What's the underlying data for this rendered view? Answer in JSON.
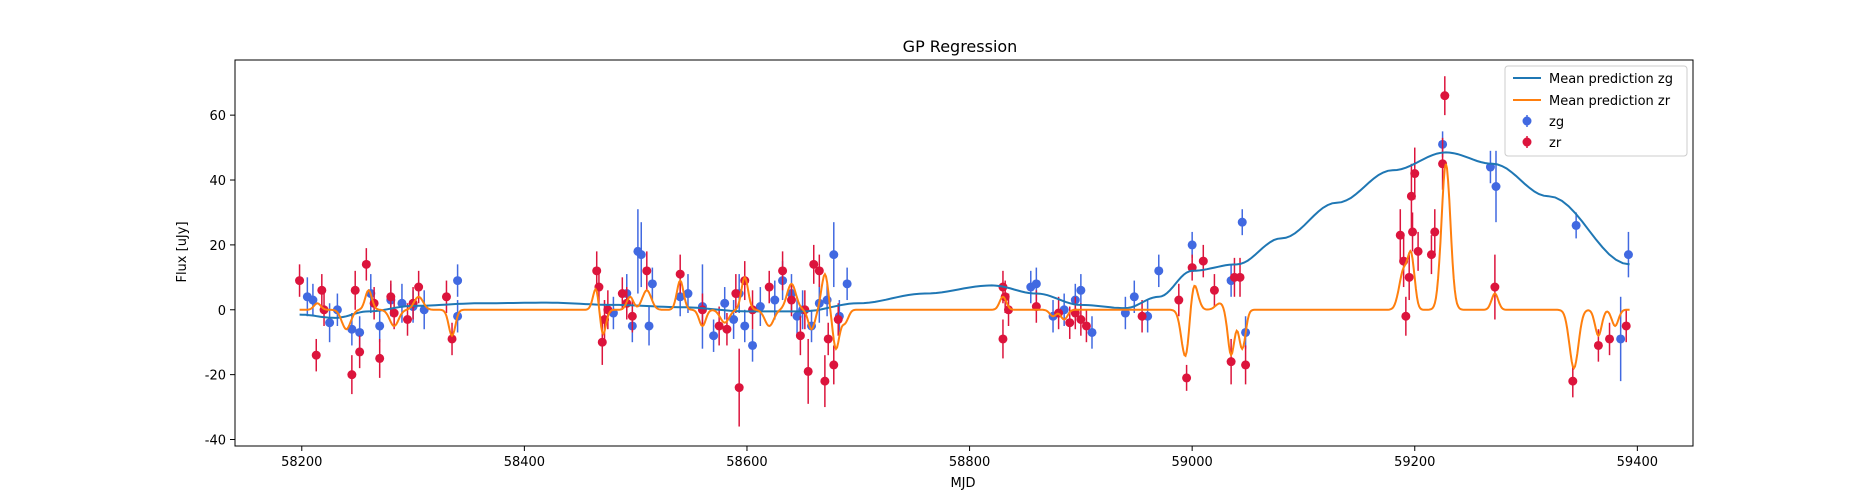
{
  "chart_data": {
    "type": "scatter",
    "title": "GP Regression",
    "xlabel": "MJD",
    "ylabel": "Flux [uJy]",
    "xlim": [
      58140,
      59450
    ],
    "ylim": [
      -42,
      77
    ],
    "xticks": [
      58200,
      58400,
      58600,
      58800,
      59000,
      59200,
      59400
    ],
    "yticks": [
      -40,
      -20,
      0,
      20,
      40,
      60
    ],
    "grid": false,
    "legend_position": "top-right",
    "legend": {
      "line_zg": "Mean prediction zg",
      "line_zr": "Mean prediction zr",
      "points_zg": "zg",
      "points_zr": "zr"
    },
    "colors": {
      "line_zg": "#1f77b4",
      "line_zr": "#ff7f0e",
      "points_zg": "#4169e1",
      "points_zr": "#dc143c"
    },
    "line_zg": {
      "x": [
        58198,
        58230,
        58260,
        58300,
        58360,
        58420,
        58480,
        58540,
        58600,
        58650,
        58700,
        58760,
        58820,
        58860,
        58900,
        58940,
        58970,
        59000,
        59040,
        59080,
        59130,
        59180,
        59228,
        59270,
        59320,
        59393
      ],
      "y": [
        -1.5,
        -2.5,
        -0.5,
        1.2,
        2,
        2.2,
        1.5,
        0.8,
        -0.5,
        -0.5,
        2,
        5,
        7.5,
        5,
        1.5,
        0.5,
        4,
        12,
        14,
        22,
        33,
        43,
        48.5,
        45,
        35,
        14
      ]
    },
    "line_zr_baseline": 0,
    "line_zr_peaks": [
      [
        58214,
        2,
        3
      ],
      [
        58240,
        -6,
        4
      ],
      [
        58260,
        6,
        3
      ],
      [
        58283,
        -5,
        4
      ],
      [
        58305,
        4,
        4
      ],
      [
        58335,
        -8,
        3
      ],
      [
        58465,
        8,
        3
      ],
      [
        58470,
        -9,
        3
      ],
      [
        58495,
        4,
        3
      ],
      [
        58510,
        6,
        4
      ],
      [
        58540,
        9,
        3
      ],
      [
        58560,
        -5,
        3
      ],
      [
        58580,
        -4,
        4
      ],
      [
        58598,
        10,
        3
      ],
      [
        58620,
        -5,
        4
      ],
      [
        58640,
        8,
        4
      ],
      [
        58658,
        -6,
        3
      ],
      [
        58670,
        11,
        3
      ],
      [
        58680,
        -12,
        3
      ],
      [
        58688,
        -4,
        3
      ],
      [
        58830,
        4,
        3
      ],
      [
        58875,
        -2,
        3
      ],
      [
        58885,
        -3,
        3
      ],
      [
        58995,
        -19,
        4
      ],
      [
        59000,
        13,
        4
      ],
      [
        59025,
        2,
        4
      ],
      [
        59035,
        -14,
        3
      ],
      [
        59045,
        -12,
        3
      ],
      [
        59190,
        12,
        4
      ],
      [
        59197,
        15,
        3
      ],
      [
        59228,
        45,
        4
      ],
      [
        59272,
        5,
        3
      ],
      [
        59343,
        -18,
        4
      ],
      [
        59365,
        -8,
        3
      ],
      [
        59380,
        -5,
        3
      ]
    ],
    "points_zg": [
      [
        58205,
        4,
        6
      ],
      [
        58210,
        3,
        5
      ],
      [
        58225,
        -4,
        6
      ],
      [
        58232,
        0,
        5
      ],
      [
        58245,
        -6,
        5
      ],
      [
        58252,
        -7,
        5
      ],
      [
        58262,
        5,
        6
      ],
      [
        58270,
        -5,
        5
      ],
      [
        58280,
        3,
        5
      ],
      [
        58290,
        2,
        6
      ],
      [
        58300,
        1,
        5
      ],
      [
        58310,
        0,
        6
      ],
      [
        58340,
        9,
        5
      ],
      [
        58340,
        -2,
        5
      ],
      [
        58480,
        -1,
        5
      ],
      [
        58492,
        5,
        6
      ],
      [
        58497,
        -5,
        5
      ],
      [
        58502,
        18,
        13
      ],
      [
        58505,
        17,
        10
      ],
      [
        58512,
        -5,
        6
      ],
      [
        58515,
        8,
        5
      ],
      [
        58540,
        4,
        6
      ],
      [
        58547,
        5,
        6
      ],
      [
        58560,
        1,
        13
      ],
      [
        58570,
        -8,
        5
      ],
      [
        58580,
        2,
        5
      ],
      [
        58588,
        -3,
        6
      ],
      [
        58593,
        5,
        6
      ],
      [
        58598,
        -5,
        5
      ],
      [
        58605,
        -11,
        5
      ],
      [
        58612,
        1,
        6
      ],
      [
        58625,
        3,
        6
      ],
      [
        58632,
        9,
        6
      ],
      [
        58640,
        5,
        6
      ],
      [
        58645,
        -2,
        6
      ],
      [
        58650,
        0,
        6
      ],
      [
        58658,
        -5,
        5
      ],
      [
        58665,
        2,
        6
      ],
      [
        58672,
        3,
        5
      ],
      [
        58678,
        17,
        10
      ],
      [
        58683,
        -2,
        5
      ],
      [
        58690,
        8,
        5
      ],
      [
        58855,
        7,
        5
      ],
      [
        58860,
        8,
        5
      ],
      [
        58875,
        -2,
        5
      ],
      [
        58885,
        0,
        5
      ],
      [
        58895,
        3,
        5
      ],
      [
        58900,
        6,
        5
      ],
      [
        58910,
        -7,
        5
      ],
      [
        58940,
        -1,
        5
      ],
      [
        58948,
        4,
        5
      ],
      [
        58960,
        -2,
        5
      ],
      [
        58970,
        12,
        5
      ],
      [
        59000,
        20,
        4
      ],
      [
        59035,
        9,
        5
      ],
      [
        59045,
        27,
        4
      ],
      [
        59048,
        -7,
        5
      ],
      [
        59225,
        51,
        4
      ],
      [
        59268,
        44,
        5
      ],
      [
        59273,
        38,
        11
      ],
      [
        59345,
        26,
        4
      ],
      [
        59385,
        -9,
        13
      ],
      [
        59392,
        17,
        7
      ]
    ],
    "points_zr": [
      [
        58198,
        9,
        5
      ],
      [
        58213,
        -14,
        5
      ],
      [
        58218,
        6,
        5
      ],
      [
        58220,
        0,
        5
      ],
      [
        58245,
        -20,
        6
      ],
      [
        58248,
        6,
        6
      ],
      [
        58252,
        -13,
        5
      ],
      [
        58258,
        14,
        5
      ],
      [
        58265,
        2,
        5
      ],
      [
        58270,
        -15,
        6
      ],
      [
        58280,
        4,
        5
      ],
      [
        58283,
        -1,
        5
      ],
      [
        58295,
        -3,
        5
      ],
      [
        58300,
        2,
        5
      ],
      [
        58305,
        7,
        5
      ],
      [
        58335,
        -9,
        5
      ],
      [
        58330,
        4,
        5
      ],
      [
        58465,
        12,
        6
      ],
      [
        58467,
        7,
        6
      ],
      [
        58470,
        -10,
        7
      ],
      [
        58472,
        -3,
        6
      ],
      [
        58475,
        0,
        6
      ],
      [
        58488,
        5,
        5
      ],
      [
        58492,
        2,
        5
      ],
      [
        58497,
        -2,
        5
      ],
      [
        58510,
        12,
        6
      ],
      [
        58540,
        11,
        6
      ],
      [
        58560,
        0,
        5
      ],
      [
        58575,
        -5,
        6
      ],
      [
        58582,
        -6,
        5
      ],
      [
        58590,
        5,
        6
      ],
      [
        58593,
        -24,
        12
      ],
      [
        58598,
        9,
        6
      ],
      [
        58605,
        0,
        6
      ],
      [
        58620,
        7,
        5
      ],
      [
        58632,
        12,
        6
      ],
      [
        58640,
        3,
        5
      ],
      [
        58648,
        -8,
        6
      ],
      [
        58652,
        0,
        6
      ],
      [
        58655,
        -19,
        10
      ],
      [
        58660,
        14,
        6
      ],
      [
        58665,
        12,
        5
      ],
      [
        58670,
        -22,
        8
      ],
      [
        58673,
        -9,
        5
      ],
      [
        58678,
        -17,
        6
      ],
      [
        58682,
        -3,
        5
      ],
      [
        58830,
        7,
        5
      ],
      [
        58832,
        4,
        5
      ],
      [
        58835,
        0,
        5
      ],
      [
        58830,
        -9,
        6
      ],
      [
        58860,
        1,
        5
      ],
      [
        58880,
        -1,
        5
      ],
      [
        58890,
        -4,
        5
      ],
      [
        58895,
        -1,
        5
      ],
      [
        58900,
        -3,
        5
      ],
      [
        58905,
        -5,
        5
      ],
      [
        58955,
        -2,
        5
      ],
      [
        58988,
        3,
        5
      ],
      [
        58995,
        -21,
        4
      ],
      [
        59000,
        13,
        4
      ],
      [
        59010,
        15,
        5
      ],
      [
        59020,
        6,
        5
      ],
      [
        59035,
        -16,
        7
      ],
      [
        59038,
        10,
        6
      ],
      [
        59043,
        10,
        6
      ],
      [
        59048,
        -17,
        6
      ],
      [
        59187,
        23,
        8
      ],
      [
        59190,
        15,
        8
      ],
      [
        59192,
        -2,
        6
      ],
      [
        59195,
        10,
        7
      ],
      [
        59197,
        35,
        10
      ],
      [
        59200,
        42,
        8
      ],
      [
        59198,
        24,
        6
      ],
      [
        59203,
        18,
        6
      ],
      [
        59215,
        17,
        6
      ],
      [
        59218,
        24,
        7
      ],
      [
        59225,
        45,
        8
      ],
      [
        59227,
        66,
        6
      ],
      [
        59272,
        7,
        10
      ],
      [
        59342,
        -22,
        5
      ],
      [
        59365,
        -11,
        5
      ],
      [
        59375,
        -9,
        5
      ],
      [
        59390,
        -5,
        5
      ]
    ]
  }
}
